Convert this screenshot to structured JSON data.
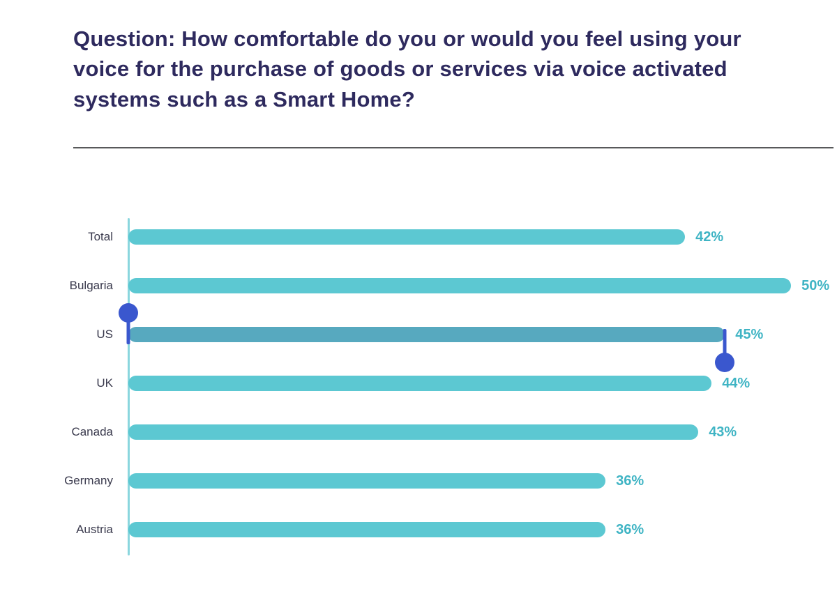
{
  "title": "Question: How comfortable do you or would you feel using your voice for the purchase of goods or services via voice activated systems such as a Smart Home?",
  "chart_data": {
    "type": "bar",
    "orientation": "horizontal",
    "title": "Question: How comfortable do you or would you feel using your voice for the purchase of goods or services via voice activated systems such as a Smart Home?",
    "categories": [
      "Total",
      "Bulgaria",
      "US",
      "UK",
      "Canada",
      "Germany",
      "Austria"
    ],
    "values": [
      42,
      50,
      45,
      44,
      43,
      36,
      36
    ],
    "value_labels": [
      "42%",
      "50%",
      "45%",
      "44%",
      "43%",
      "36%",
      "36%"
    ],
    "xlim": [
      0,
      53.2
    ],
    "highlighted_category": "US",
    "grid": false,
    "legend": false,
    "colors": {
      "bar": "#5cc8d2",
      "highlighted_bar": "#57a9bf",
      "value_label": "#3fb4c4",
      "category_label": "#3a3a4d",
      "axis_line": "#8ad6de",
      "title": "#2e2a5e",
      "selection_handle": "#3a57ce"
    }
  }
}
